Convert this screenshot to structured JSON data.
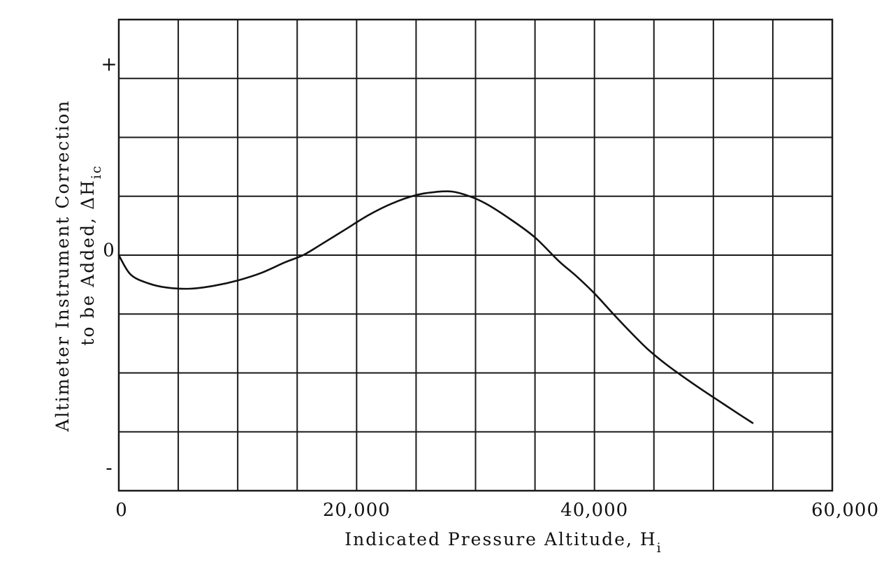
{
  "chart_data": {
    "type": "line",
    "xlabel": "Indicated Pressure Altitude, H",
    "xlabel_subscript": "i",
    "ylabel_line1": "Altimeter Instrument Correction",
    "ylabel_line2": "to be Added, ΔH",
    "ylabel_subscript": "ic",
    "x_tick_labels": [
      "0",
      "20,000",
      "40,000",
      "60,000"
    ],
    "x_ticks": [
      0,
      20000,
      40000,
      60000
    ],
    "y_tick_labels": [
      {
        "label": "+",
        "value": 3.25
      },
      {
        "label": "0",
        "value": 0.1
      },
      {
        "label": "-",
        "value": -3.6
      }
    ],
    "xlim": [
      0,
      60000
    ],
    "ylim": [
      -4,
      4
    ],
    "grid": true,
    "x_grid_step": 5000,
    "y_grid_step": 1,
    "series": [
      {
        "x": [
          0,
          1000,
          2500,
          4000,
          6000,
          8000,
          10000,
          12000,
          14000,
          15500,
          17000,
          19000,
          21000,
          23000,
          25000,
          26500,
          28000,
          29500,
          31000,
          33000,
          35000,
          37000,
          38500,
          40000,
          41500,
          43000,
          44500,
          46000,
          47500,
          49000,
          50500,
          52000,
          53300
        ],
        "y": [
          0,
          -0.33,
          -0.48,
          -0.55,
          -0.57,
          -0.52,
          -0.43,
          -0.3,
          -0.12,
          0.0,
          0.18,
          0.43,
          0.68,
          0.88,
          1.02,
          1.07,
          1.08,
          1.0,
          0.86,
          0.6,
          0.3,
          -0.1,
          -0.36,
          -0.65,
          -0.98,
          -1.3,
          -1.6,
          -1.85,
          -2.07,
          -2.28,
          -2.48,
          -2.68,
          -2.85
        ]
      }
    ]
  }
}
